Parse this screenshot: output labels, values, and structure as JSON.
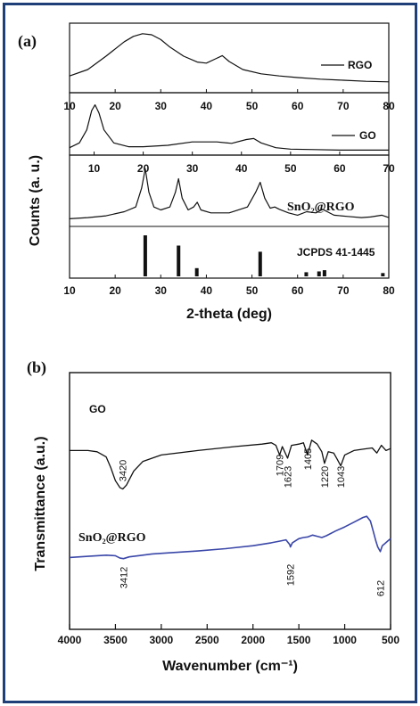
{
  "chart_data": [
    {
      "type": "line",
      "panel_label": "(a)",
      "ylabel": "Counts (a. u.)",
      "xlabel": "2-theta (deg)",
      "subplots": [
        {
          "name": "RGO",
          "legend": "RGO",
          "xlim": [
            10,
            80
          ],
          "x_ticks": [
            10,
            20,
            30,
            40,
            50,
            60,
            70,
            80
          ],
          "color": "#111111",
          "series": [
            {
              "name": "RGO",
              "x": [
                10,
                14,
                18,
                22,
                24,
                26,
                28,
                30,
                32,
                35,
                38,
                40,
                42,
                43.5,
                45,
                48,
                52,
                56,
                60,
                65,
                70,
                75,
                80
              ],
              "y": [
                0.18,
                0.3,
                0.55,
                0.82,
                0.92,
                0.97,
                0.95,
                0.86,
                0.72,
                0.55,
                0.44,
                0.42,
                0.5,
                0.56,
                0.45,
                0.3,
                0.22,
                0.18,
                0.15,
                0.12,
                0.1,
                0.08,
                0.07
              ]
            }
          ]
        },
        {
          "name": "GO",
          "legend": "GO",
          "xlim": [
            5,
            70
          ],
          "x_ticks": [
            10,
            20,
            30,
            40,
            50,
            60,
            70
          ],
          "color": "#111111",
          "series": [
            {
              "name": "GO",
              "x": [
                5,
                7,
                8.5,
                9.5,
                10.2,
                11,
                12,
                14,
                17,
                20,
                25,
                30,
                35,
                38,
                41,
                42.5,
                44,
                47,
                50,
                55,
                60,
                65,
                70
              ],
              "y": [
                0.08,
                0.18,
                0.45,
                0.85,
                0.97,
                0.8,
                0.45,
                0.18,
                0.1,
                0.1,
                0.13,
                0.2,
                0.2,
                0.17,
                0.25,
                0.27,
                0.18,
                0.08,
                0.05,
                0.04,
                0.03,
                0.03,
                0.03
              ]
            }
          ]
        },
        {
          "name": "SnO₂@RGO",
          "xlim": [
            10,
            80
          ],
          "x_ticks": [
            10,
            20,
            30,
            40,
            50,
            60,
            70,
            80
          ],
          "color": "#111111",
          "series": [
            {
              "name": "SnO₂@RGO",
              "x": [
                10,
                14,
                18,
                22,
                24.5,
                25.8,
                26.6,
                27.4,
                28.5,
                30,
                32,
                33.2,
                33.9,
                34.7,
                36,
                37.2,
                38,
                38.8,
                41,
                45,
                49,
                50.8,
                51.8,
                52.8,
                54,
                55,
                56,
                58,
                60,
                62,
                64,
                65.5,
                66.5,
                68,
                71,
                74,
                76,
                78.5,
                80
              ],
              "y": [
                0.1,
                0.12,
                0.15,
                0.22,
                0.3,
                0.62,
                0.95,
                0.55,
                0.3,
                0.25,
                0.3,
                0.55,
                0.78,
                0.45,
                0.25,
                0.3,
                0.38,
                0.25,
                0.2,
                0.2,
                0.3,
                0.55,
                0.72,
                0.45,
                0.28,
                0.3,
                0.26,
                0.2,
                0.16,
                0.22,
                0.2,
                0.26,
                0.22,
                0.16,
                0.14,
                0.12,
                0.13,
                0.16,
                0.12
              ]
            }
          ]
        },
        {
          "name": "JCPDS 41-1445",
          "type": "bar",
          "xlim": [
            10,
            80
          ],
          "x_ticks": [
            10,
            20,
            30,
            40,
            50,
            60,
            70,
            80
          ],
          "x_ticklabels": [
            "10",
            "20",
            "30",
            "40",
            "50",
            "60",
            "70",
            "80"
          ],
          "positions": [
            26.6,
            33.9,
            37.9,
            51.8,
            61.9,
            64.7,
            65.9,
            78.7
          ],
          "intensities": [
            100,
            75,
            20,
            60,
            10,
            12,
            15,
            8
          ]
        }
      ]
    },
    {
      "type": "line",
      "panel_label": "(b)",
      "ylabel": "Transmittance (a.u.)",
      "xlabel": "Wavenumber (cm⁻¹)",
      "xlim": [
        4000,
        500
      ],
      "x_ticks": [
        4000,
        3500,
        3000,
        2500,
        2000,
        1500,
        1000,
        500
      ],
      "series": [
        {
          "name": "GO",
          "color": "#111111",
          "x": [
            4000,
            3800,
            3700,
            3600,
            3550,
            3500,
            3450,
            3420,
            3380,
            3300,
            3200,
            3000,
            2600,
            2200,
            1900,
            1800,
            1750,
            1709,
            1680,
            1623,
            1580,
            1500,
            1450,
            1405,
            1360,
            1300,
            1250,
            1220,
            1180,
            1120,
            1080,
            1043,
            1000,
            900,
            800,
            700,
            650,
            600,
            550,
            500
          ],
          "y": [
            0.62,
            0.62,
            0.6,
            0.52,
            0.35,
            0.15,
            0.04,
            0.02,
            0.08,
            0.3,
            0.45,
            0.55,
            0.62,
            0.68,
            0.72,
            0.74,
            0.7,
            0.55,
            0.68,
            0.5,
            0.7,
            0.72,
            0.74,
            0.55,
            0.78,
            0.72,
            0.6,
            0.42,
            0.6,
            0.58,
            0.48,
            0.38,
            0.55,
            0.62,
            0.64,
            0.66,
            0.58,
            0.7,
            0.62,
            0.65
          ]
        },
        {
          "name": "SnO₂@RGO",
          "color": "#3a47a8",
          "x": [
            4000,
            3800,
            3600,
            3500,
            3450,
            3412,
            3350,
            3250,
            3100,
            2900,
            2600,
            2300,
            2000,
            1800,
            1700,
            1640,
            1600,
            1592,
            1570,
            1500,
            1450,
            1400,
            1350,
            1300,
            1250,
            1200,
            1100,
            1000,
            900,
            800,
            760,
            720,
            690,
            660,
            640,
            612,
            590,
            560,
            530,
            500
          ],
          "y": [
            0.1,
            0.12,
            0.14,
            0.13,
            0.09,
            0.08,
            0.11,
            0.13,
            0.16,
            0.18,
            0.21,
            0.25,
            0.3,
            0.35,
            0.38,
            0.4,
            0.32,
            0.28,
            0.35,
            0.42,
            0.44,
            0.45,
            0.48,
            0.46,
            0.44,
            0.47,
            0.55,
            0.62,
            0.7,
            0.78,
            0.8,
            0.72,
            0.55,
            0.38,
            0.28,
            0.2,
            0.3,
            0.34,
            0.38,
            0.42
          ]
        }
      ],
      "annotations": {
        "GO": [
          {
            "x": 3420,
            "label": "3420"
          },
          {
            "x": 1709,
            "label": "1709"
          },
          {
            "x": 1623,
            "label": "1623"
          },
          {
            "x": 1405,
            "label": "1405"
          },
          {
            "x": 1220,
            "label": "1220"
          },
          {
            "x": 1043,
            "label": "1043"
          }
        ],
        "SnO₂@RGO": [
          {
            "x": 3412,
            "label": "3412"
          },
          {
            "x": 1592,
            "label": "1592"
          },
          {
            "x": 612,
            "label": "612"
          }
        ]
      }
    }
  ]
}
